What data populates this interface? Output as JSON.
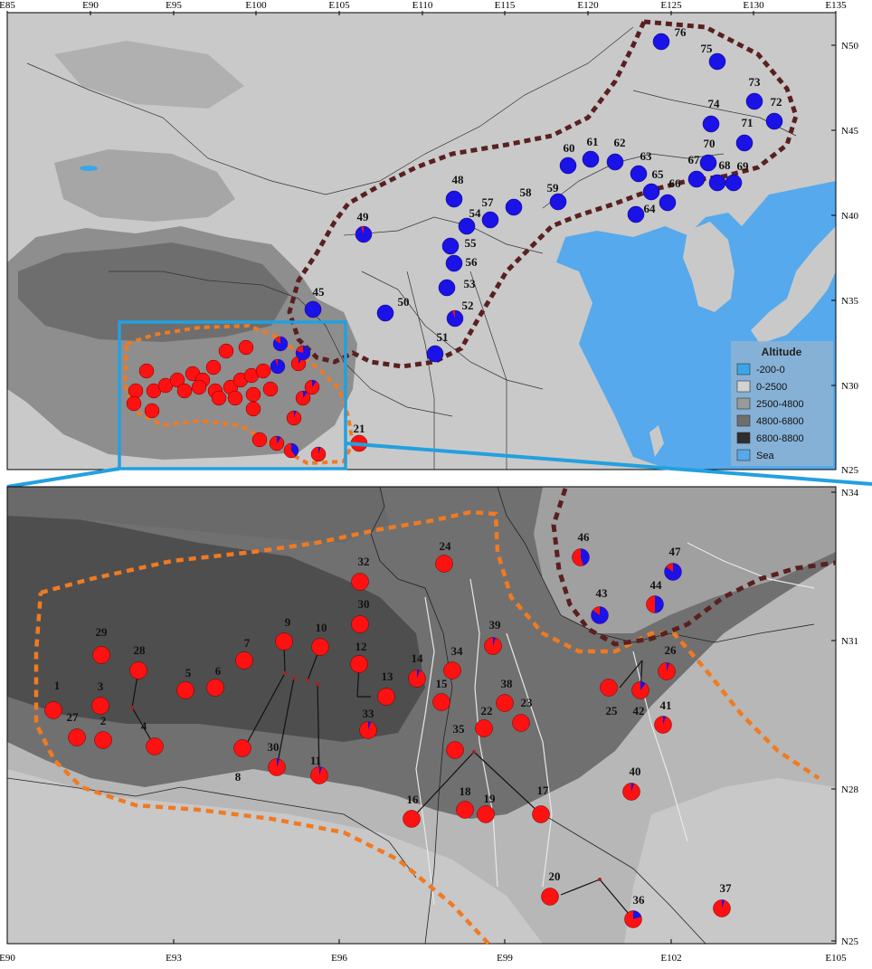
{
  "top_map": {
    "x_ticks": [
      "E85",
      "E90",
      "E95",
      "E100",
      "E105",
      "E110",
      "E115",
      "E120",
      "E125",
      "E130",
      "E135"
    ],
    "y_ticks": [
      "N50",
      "N45",
      "N40",
      "N35",
      "N30",
      "N25"
    ]
  },
  "bottom_map": {
    "x_ticks": [
      "E90",
      "E93",
      "E96",
      "E99",
      "E102",
      "E105"
    ],
    "y_ticks": [
      "N34",
      "N31",
      "N28",
      "N25"
    ]
  },
  "legend": {
    "title": "Altitude",
    "items": [
      {
        "label": "-200-0",
        "color": "#3aa6e8"
      },
      {
        "label": "0-2500",
        "color": "#d2d2d2"
      },
      {
        "label": "2500-4800",
        "color": "#9a9a9a"
      },
      {
        "label": "4800-6800",
        "color": "#6e6e6e"
      },
      {
        "label": "6800-8800",
        "color": "#2e2e2e"
      },
      {
        "label": "Sea",
        "color": "#55a9ec"
      }
    ]
  },
  "colors": {
    "red_group": "#ff1111",
    "blue_group": "#1a12e6",
    "north_boundary": "#5a2020",
    "south_boundary": "#f07a22",
    "inset_box": "#22a0e0"
  },
  "top_sites": [
    {
      "id": "76",
      "blue": 1.0
    },
    {
      "id": "75",
      "blue": 1.0
    },
    {
      "id": "73",
      "blue": 1.0
    },
    {
      "id": "72",
      "blue": 1.0
    },
    {
      "id": "74",
      "blue": 1.0
    },
    {
      "id": "71",
      "blue": 1.0
    },
    {
      "id": "70",
      "blue": 1.0
    },
    {
      "id": "67",
      "blue": 1.0
    },
    {
      "id": "68",
      "blue": 1.0
    },
    {
      "id": "69",
      "blue": 1.0
    },
    {
      "id": "66",
      "blue": 1.0
    },
    {
      "id": "65",
      "blue": 1.0
    },
    {
      "id": "64",
      "blue": 1.0
    },
    {
      "id": "63",
      "blue": 1.0
    },
    {
      "id": "62",
      "blue": 1.0
    },
    {
      "id": "61",
      "blue": 1.0
    },
    {
      "id": "60",
      "blue": 1.0
    },
    {
      "id": "59",
      "blue": 1.0
    },
    {
      "id": "58",
      "blue": 1.0
    },
    {
      "id": "57",
      "blue": 1.0
    },
    {
      "id": "54",
      "blue": 1.0
    },
    {
      "id": "48",
      "blue": 1.0
    },
    {
      "id": "55",
      "blue": 1.0
    },
    {
      "id": "56",
      "blue": 1.0
    },
    {
      "id": "53",
      "blue": 1.0
    },
    {
      "id": "52",
      "blue": 0.95
    },
    {
      "id": "51",
      "blue": 1.0
    },
    {
      "id": "50",
      "blue": 1.0
    },
    {
      "id": "49",
      "blue": 0.95
    },
    {
      "id": "45",
      "blue": 1.0
    },
    {
      "id": "21",
      "blue": 0.0
    }
  ],
  "bottom_sites": [
    {
      "id": "1",
      "blue": 0
    },
    {
      "id": "27",
      "blue": 0
    },
    {
      "id": "2",
      "blue": 0
    },
    {
      "id": "3",
      "blue": 0
    },
    {
      "id": "29",
      "blue": 0
    },
    {
      "id": "28",
      "blue": 0
    },
    {
      "id": "4",
      "blue": 0
    },
    {
      "id": "5",
      "blue": 0
    },
    {
      "id": "6",
      "blue": 0
    },
    {
      "id": "7",
      "blue": 0
    },
    {
      "id": "8",
      "blue": 0
    },
    {
      "id": "9",
      "blue": 0
    },
    {
      "id": "30",
      "blue": 0.05
    },
    {
      "id": "10",
      "blue": 0
    },
    {
      "id": "11",
      "blue": 0.05
    },
    {
      "id": "12",
      "blue": 0
    },
    {
      "id": "32",
      "blue": 0
    },
    {
      "id": "30",
      "blue": 0
    },
    {
      "id": "13",
      "blue": 0
    },
    {
      "id": "33",
      "blue": 0.05
    },
    {
      "id": "14",
      "blue": 0.05
    },
    {
      "id": "15",
      "blue": 0
    },
    {
      "id": "34",
      "blue": 0
    },
    {
      "id": "24",
      "blue": 0
    },
    {
      "id": "39",
      "blue": 0.05
    },
    {
      "id": "35",
      "blue": 0
    },
    {
      "id": "22",
      "blue": 0
    },
    {
      "id": "38",
      "blue": 0
    },
    {
      "id": "23",
      "blue": 0
    },
    {
      "id": "16",
      "blue": 0
    },
    {
      "id": "18",
      "blue": 0
    },
    {
      "id": "19",
      "blue": 0
    },
    {
      "id": "17",
      "blue": 0
    },
    {
      "id": "46",
      "blue": 0.45
    },
    {
      "id": "47",
      "blue": 0.85
    },
    {
      "id": "43",
      "blue": 0.85
    },
    {
      "id": "44",
      "blue": 0.5
    },
    {
      "id": "26",
      "blue": 0.05
    },
    {
      "id": "25",
      "blue": 0
    },
    {
      "id": "42",
      "blue": 0.1
    },
    {
      "id": "41",
      "blue": 0.05
    },
    {
      "id": "40",
      "blue": 0.05
    },
    {
      "id": "20",
      "blue": 0
    },
    {
      "id": "36",
      "blue": 0.2
    },
    {
      "id": "37",
      "blue": 0.05
    }
  ]
}
